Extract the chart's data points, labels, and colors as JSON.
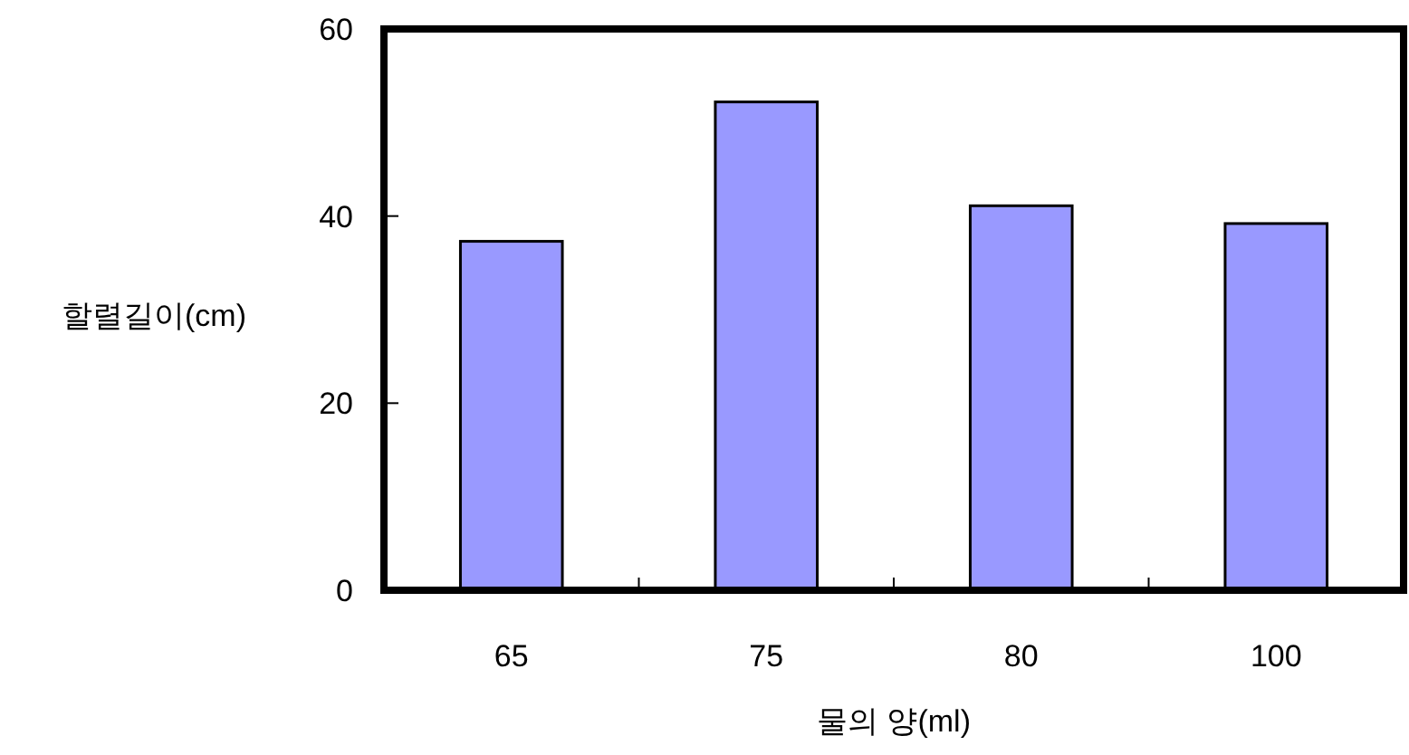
{
  "chart_data": {
    "type": "bar",
    "xlabel": "물의 양(ml)",
    "ylabel": "할렬길이(cm)",
    "categories": [
      "65",
      "75",
      "80",
      "100"
    ],
    "values": [
      37.3,
      52.2,
      41.1,
      39.2
    ],
    "color": "#9999ff",
    "ylim": [
      0,
      60
    ],
    "yticks": [
      0,
      20,
      40,
      60
    ],
    "grid": false
  }
}
